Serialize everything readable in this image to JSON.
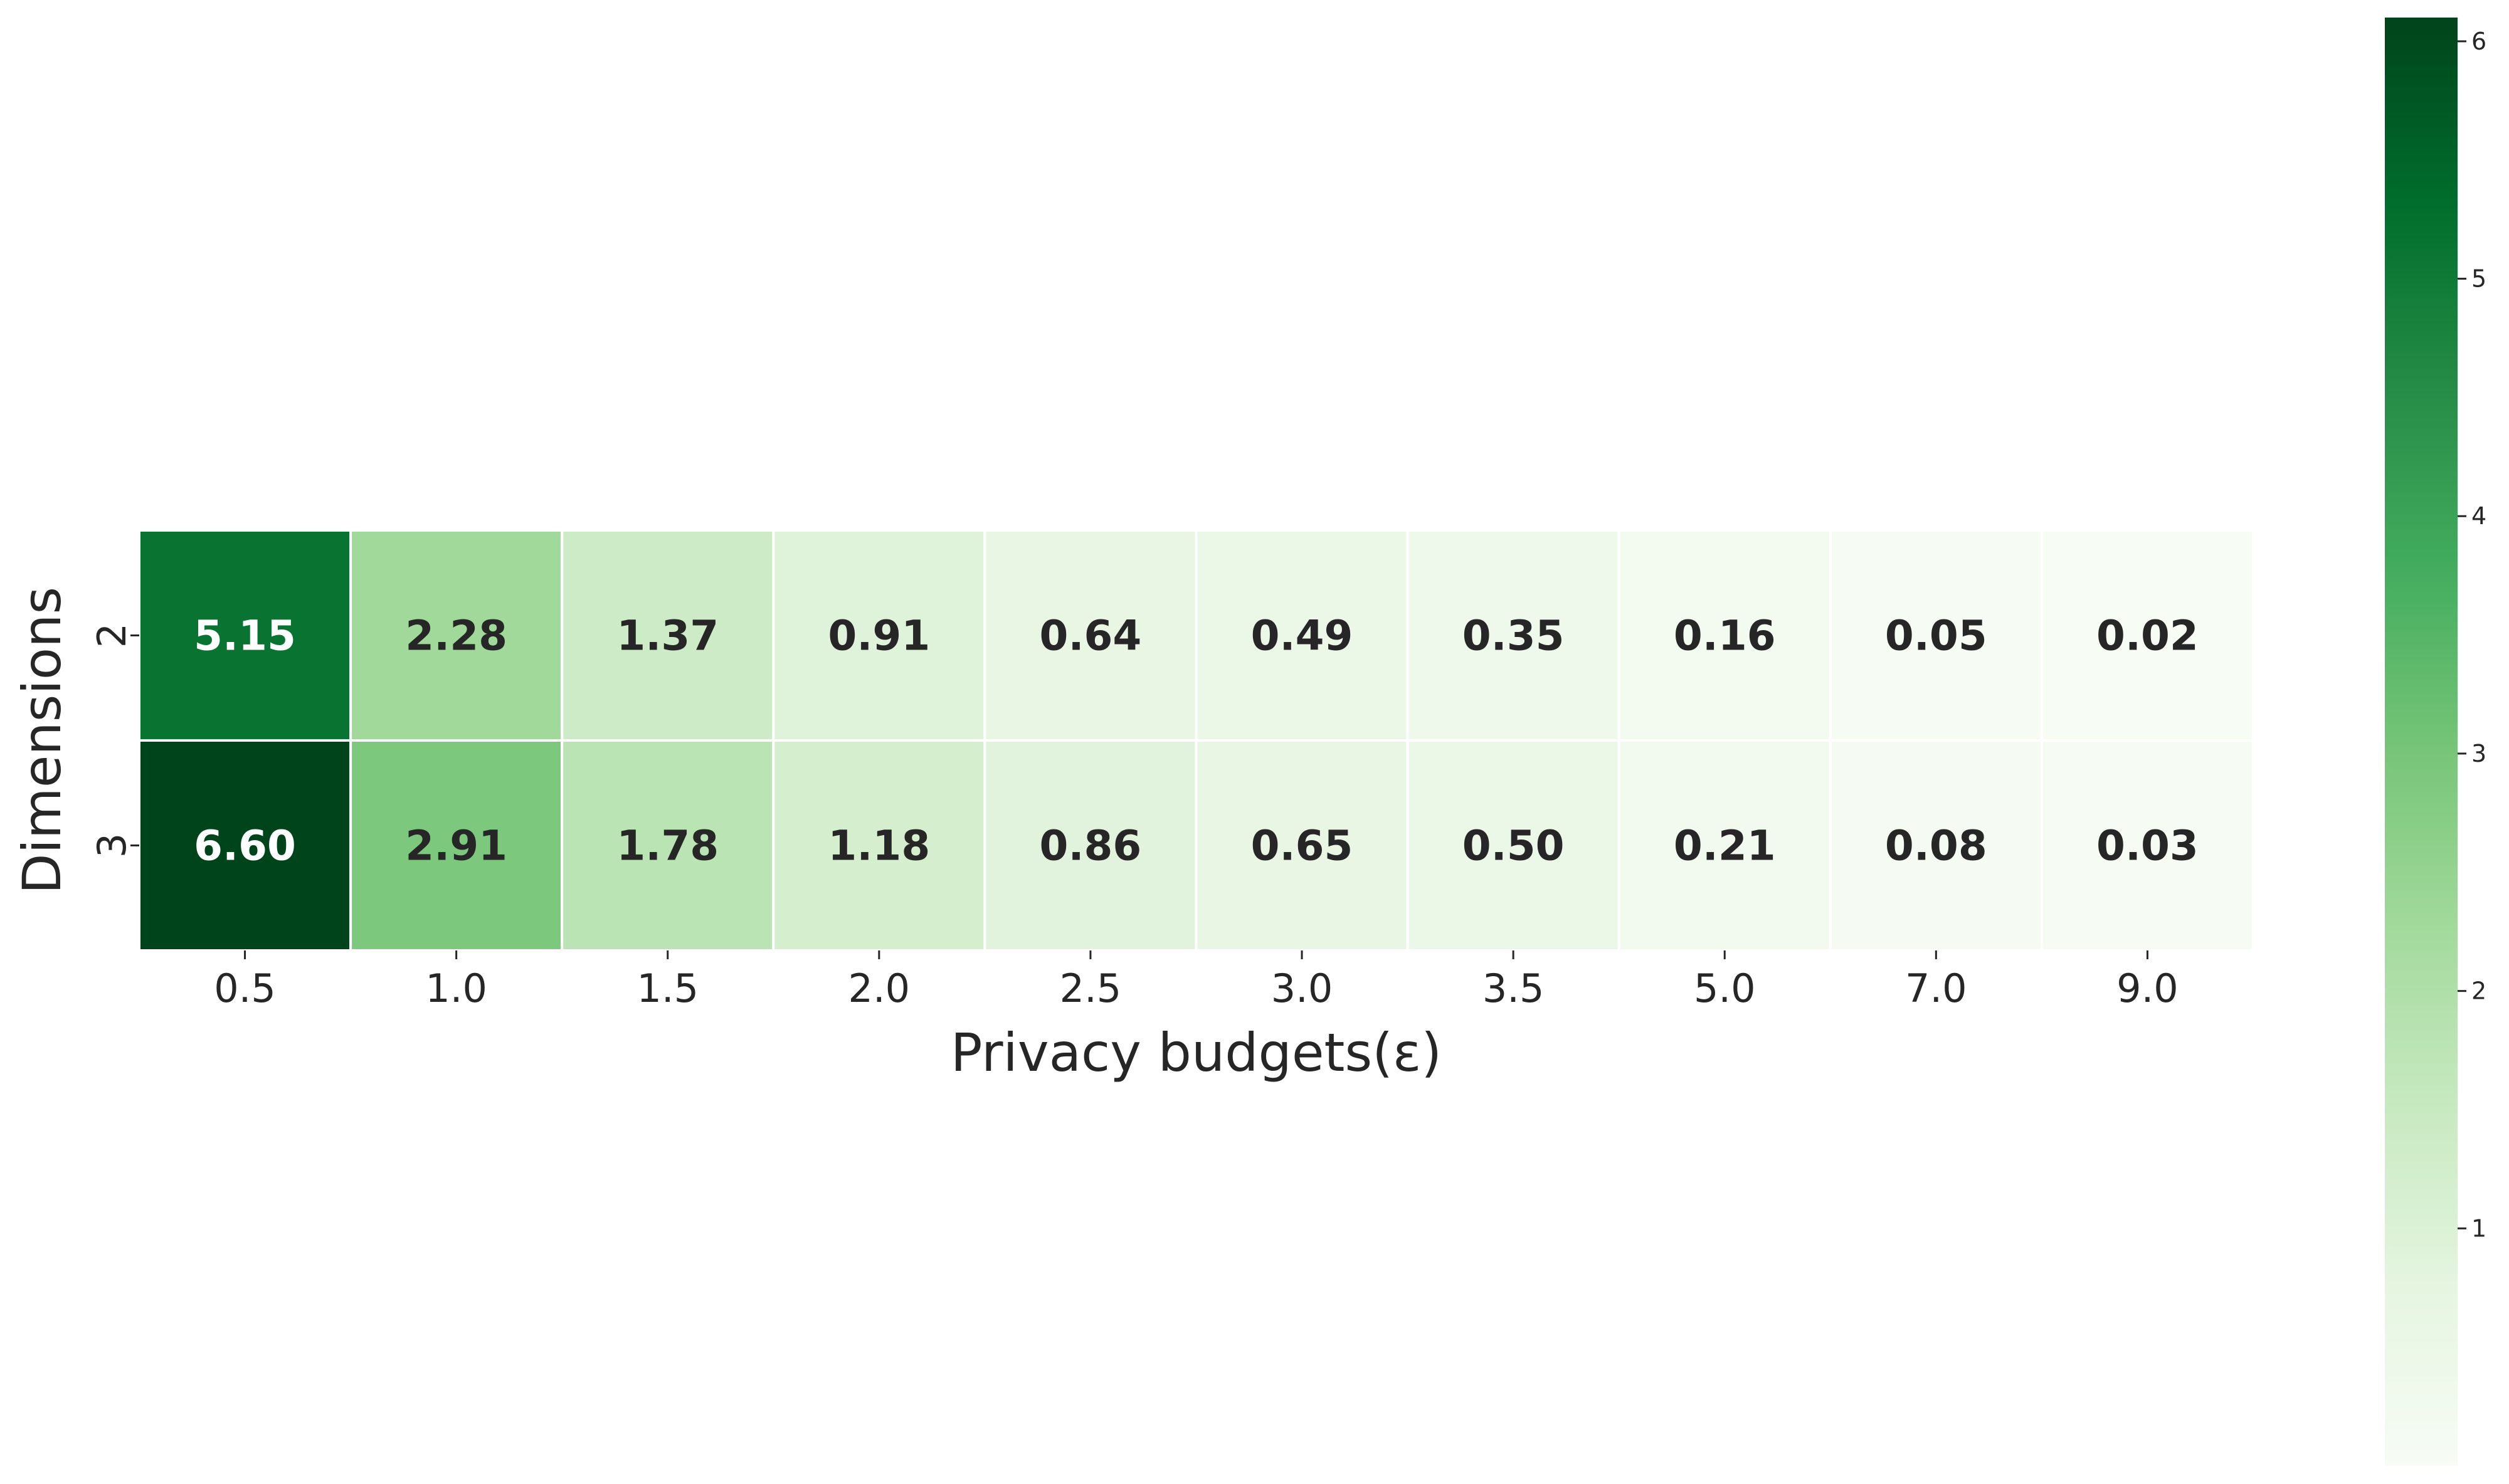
{
  "chart_data": {
    "type": "heatmap",
    "xlabel": "Privacy budgets(ε)",
    "ylabel": "Dimensions",
    "x_categories": [
      "0.5",
      "1.0",
      "1.5",
      "2.0",
      "2.5",
      "3.0",
      "3.5",
      "5.0",
      "7.0",
      "9.0"
    ],
    "y_categories": [
      "2",
      "3"
    ],
    "values": [
      [
        5.15,
        2.28,
        1.37,
        0.91,
        0.64,
        0.49,
        0.35,
        0.16,
        0.05,
        0.02
      ],
      [
        6.6,
        2.91,
        1.78,
        1.18,
        0.86,
        0.65,
        0.5,
        0.21,
        0.08,
        0.03
      ]
    ],
    "value_labels": [
      [
        "5.15",
        "2.28",
        "1.37",
        "0.91",
        "0.64",
        "0.49",
        "0.35",
        "0.16",
        "0.05",
        "0.02"
      ],
      [
        "6.60",
        "2.91",
        "1.78",
        "1.18",
        "0.86",
        "0.65",
        "0.50",
        "0.21",
        "0.08",
        "0.03"
      ]
    ],
    "colormap": "Greens",
    "colorbar": {
      "range": [
        0,
        6.1
      ],
      "ticks": [
        1,
        2,
        3,
        4,
        5,
        6
      ],
      "tick_labels": [
        "1",
        "2",
        "3",
        "4",
        "5",
        "6"
      ],
      "placement": "right"
    },
    "grid": false,
    "colors": {
      "low": "#f7fcf5",
      "high": "#00441b",
      "cell_border": "#ffffff",
      "dark_text": "#262626",
      "light_text": "#ffffff"
    }
  }
}
